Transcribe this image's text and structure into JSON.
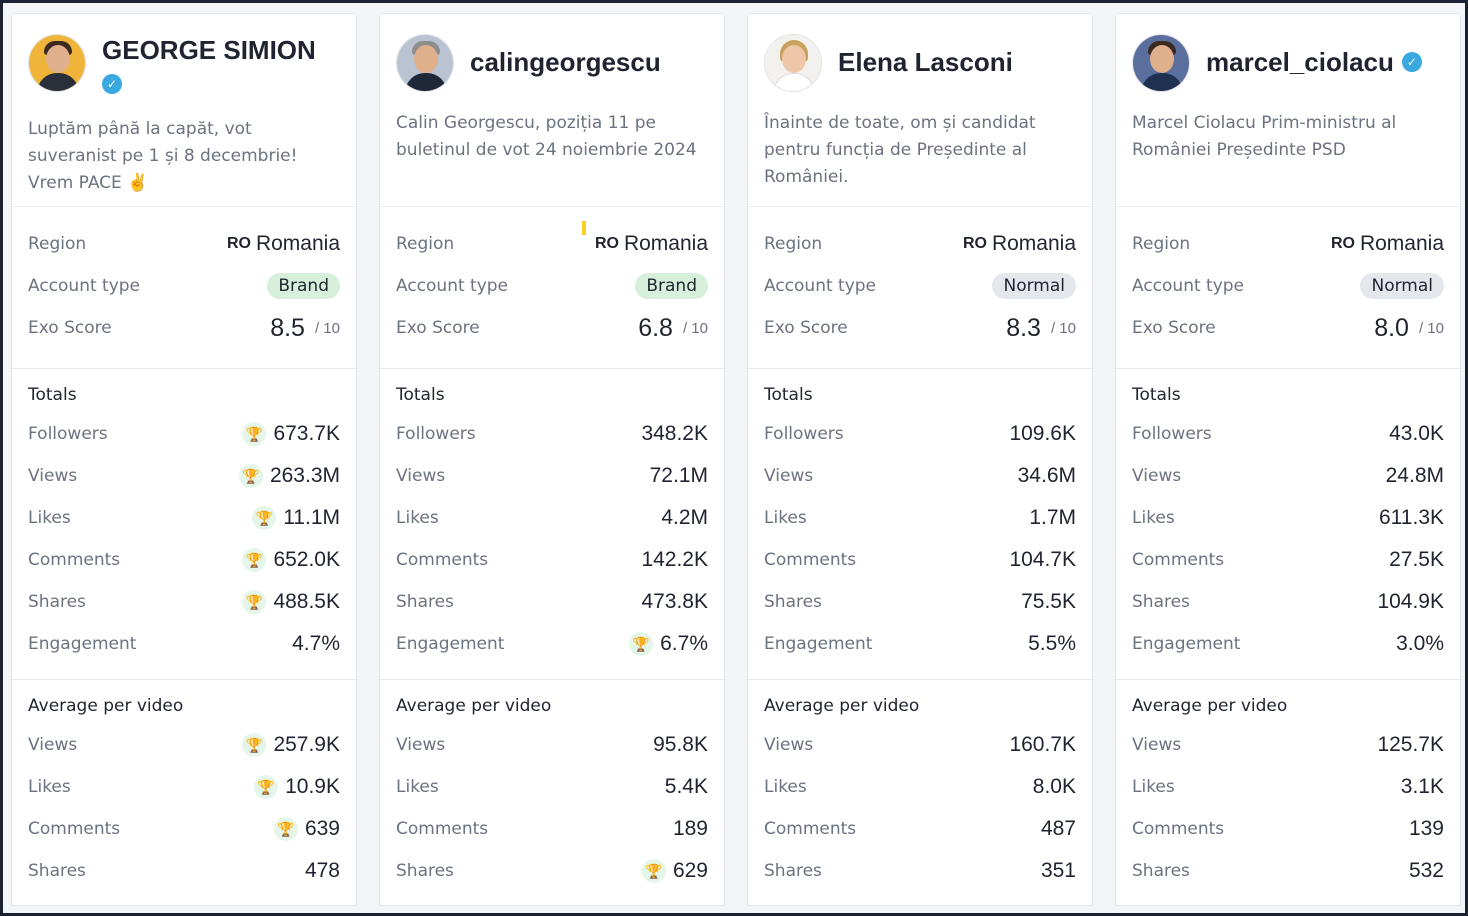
{
  "colors": {
    "accent_green": "#3cb15c",
    "verified_blue": "#3aa9e0",
    "brand_badge": "#d6f0dc",
    "normal_badge": "#e4e7ec"
  },
  "labels": {
    "region": "Region",
    "account_type": "Account type",
    "exo_score": "Exo Score",
    "score_max": "/ 10",
    "totals": "Totals",
    "average": "Average per video",
    "followers": "Followers",
    "views": "Views",
    "likes": "Likes",
    "comments": "Comments",
    "shares": "Shares",
    "engagement": "Engagement"
  },
  "cards": [
    {
      "name": "GEORGE SIMION",
      "verified": true,
      "bio": "Luptăm până la capăt, vot suveranist pe 1 și 8 decembrie! Vrem PACE ✌️",
      "region_code": "RO",
      "region": "Romania",
      "account_type": "Brand",
      "exo_score": "8.5",
      "totals": {
        "followers": "673.7K",
        "views": "263.3M",
        "likes": "11.1M",
        "comments": "652.0K",
        "shares": "488.5K",
        "engagement": "4.7%"
      },
      "average": {
        "views": "257.9K",
        "likes": "10.9K",
        "comments": "639",
        "shares": "478"
      }
    },
    {
      "name": "calingeorgescu",
      "verified": false,
      "bio": "Calin Georgescu, poziția 11 pe buletinul de vot 24 noiembrie 2024",
      "region_code": "RO",
      "region": "Romania",
      "account_type": "Brand",
      "exo_score": "6.8",
      "totals": {
        "followers": "348.2K",
        "views": "72.1M",
        "likes": "4.2M",
        "comments": "142.2K",
        "shares": "473.8K",
        "engagement": "6.7%"
      },
      "average": {
        "views": "95.8K",
        "likes": "5.4K",
        "comments": "189",
        "shares": "629"
      }
    },
    {
      "name": "Elena Lasconi",
      "verified": false,
      "bio": "Înainte de toate, om și candidat pentru funcția de Președinte al României.",
      "region_code": "RO",
      "region": "Romania",
      "account_type": "Normal",
      "exo_score": "8.3",
      "totals": {
        "followers": "109.6K",
        "views": "34.6M",
        "likes": "1.7M",
        "comments": "104.7K",
        "shares": "75.5K",
        "engagement": "5.5%"
      },
      "average": {
        "views": "160.7K",
        "likes": "8.0K",
        "comments": "487",
        "shares": "351"
      }
    },
    {
      "name": "marcel_ciolacu",
      "verified": true,
      "bio": "Marcel Ciolacu Prim-ministru al României Președinte PSD",
      "region_code": "RO",
      "region": "Romania",
      "account_type": "Normal",
      "exo_score": "8.0",
      "totals": {
        "followers": "43.0K",
        "views": "24.8M",
        "likes": "611.3K",
        "comments": "27.5K",
        "shares": "104.9K",
        "engagement": "3.0%"
      },
      "average": {
        "views": "125.7K",
        "likes": "3.1K",
        "comments": "139",
        "shares": "532"
      }
    }
  ]
}
